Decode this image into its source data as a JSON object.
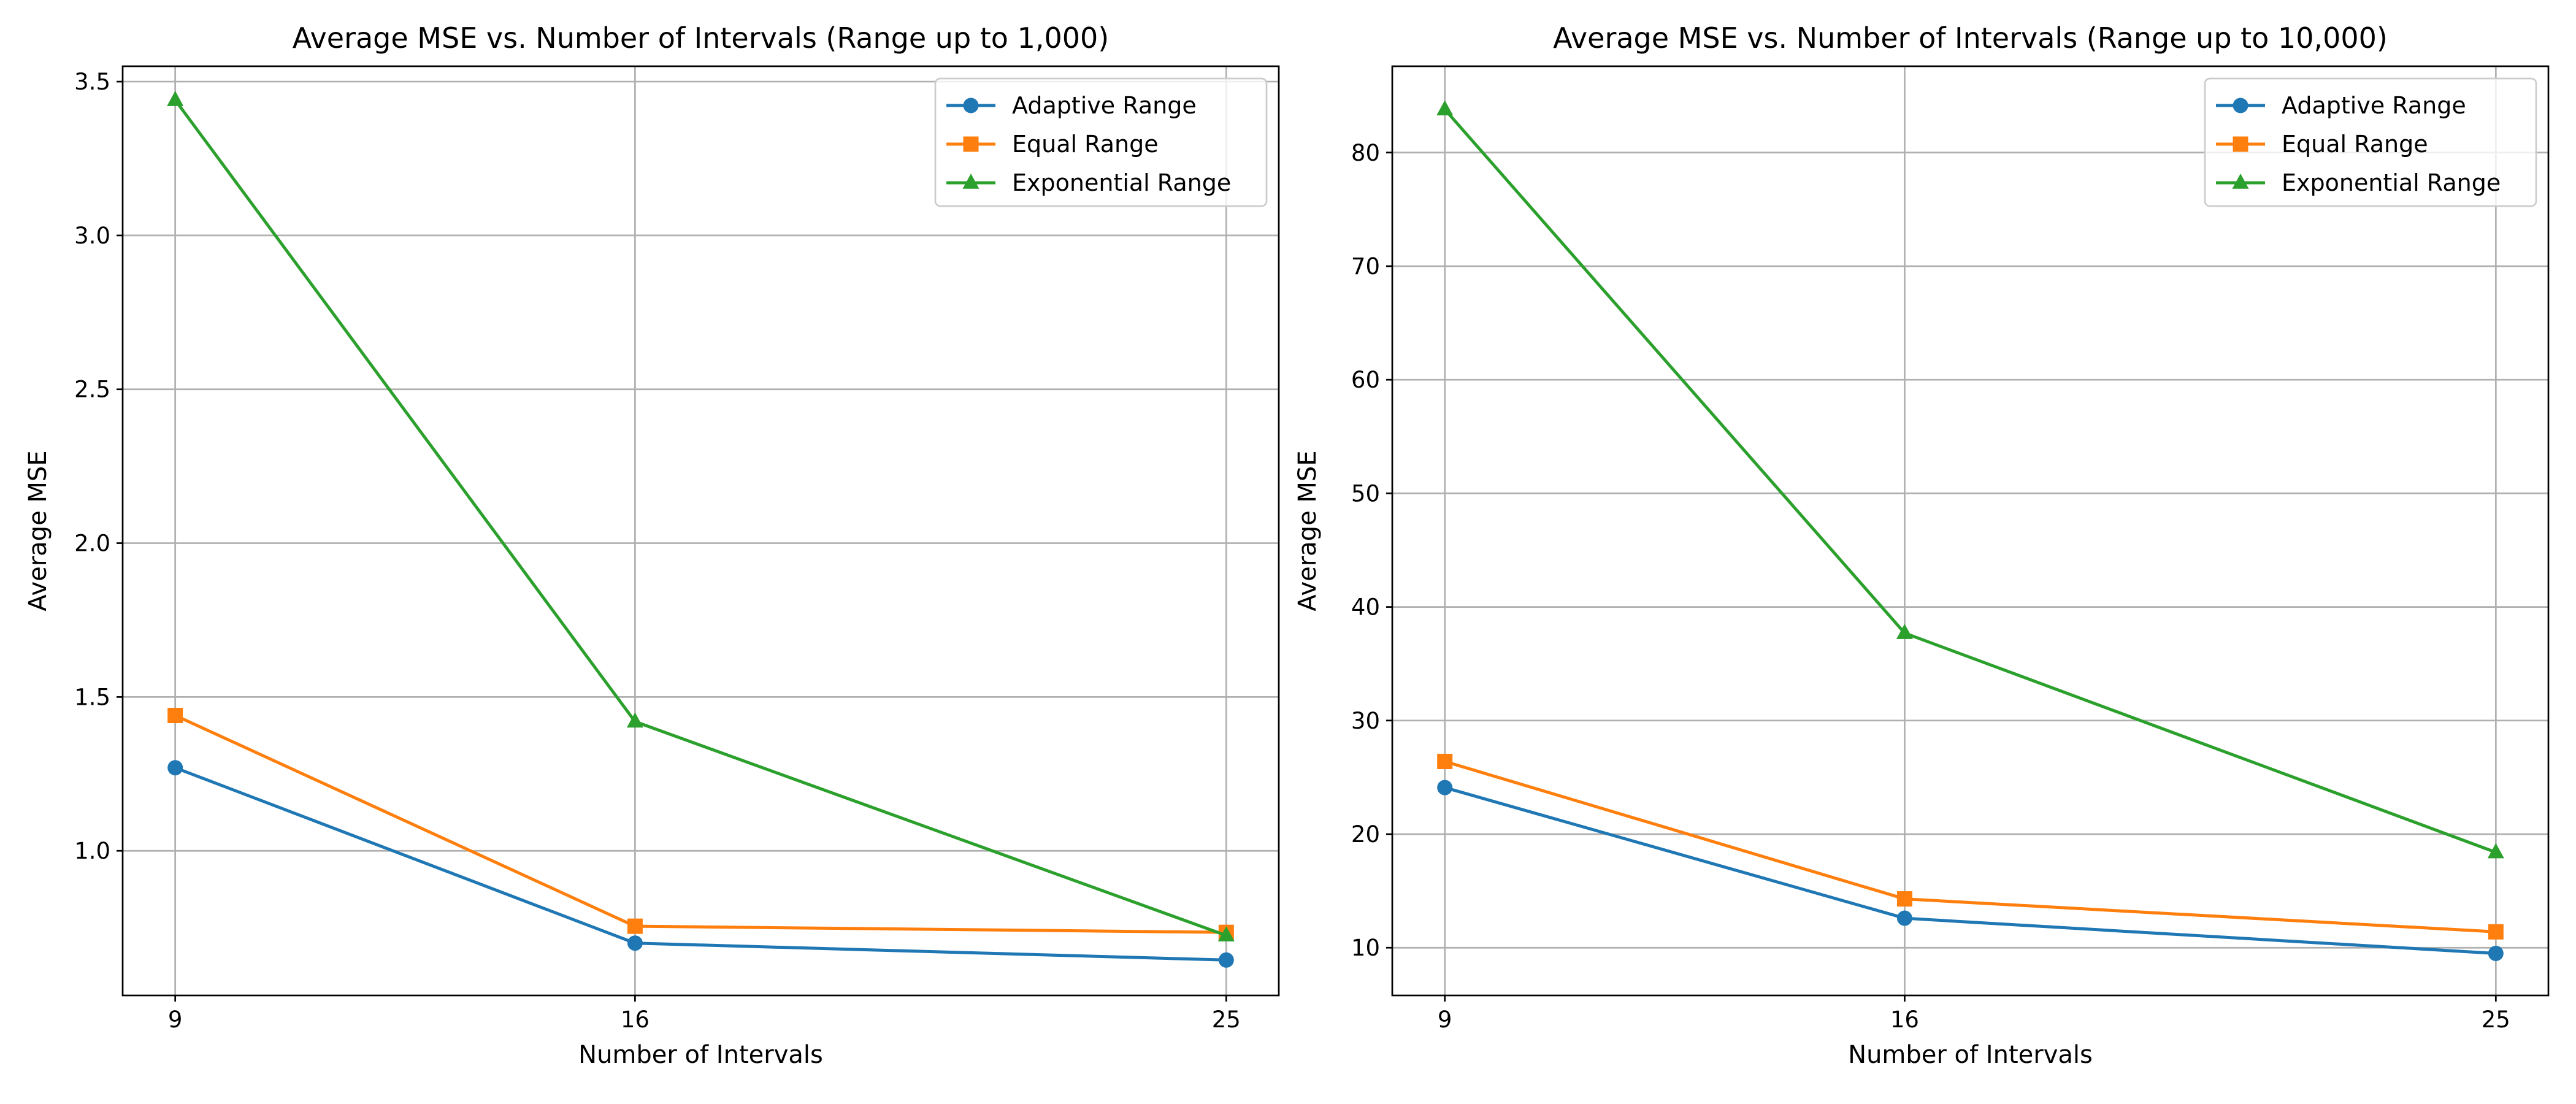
{
  "chart_data": [
    {
      "type": "line",
      "title": "Average MSE vs. Number of Intervals (Range up to 1,000)",
      "xlabel": "Number of Intervals",
      "ylabel": "Average MSE",
      "x": [
        9,
        16,
        25
      ],
      "x_tick_labels": [
        "9",
        "16",
        "25"
      ],
      "xlim": [
        8.2,
        25.8
      ],
      "ylim": [
        0.53,
        3.55
      ],
      "y_ticks": [
        1.0,
        1.5,
        2.0,
        2.5,
        3.0,
        3.5
      ],
      "y_tick_labels": [
        "1.0",
        "1.5",
        "2.0",
        "2.5",
        "3.0",
        "3.5"
      ],
      "grid": true,
      "legend_position": "top-right",
      "series": [
        {
          "name": "Adaptive Range",
          "color": "#1f77b4",
          "marker": "circle",
          "values": [
            1.27,
            0.7,
            0.645
          ]
        },
        {
          "name": "Equal Range",
          "color": "#ff7f0e",
          "marker": "square",
          "values": [
            1.44,
            0.755,
            0.735
          ]
        },
        {
          "name": "Exponential Range",
          "color": "#2ca02c",
          "marker": "triangle",
          "values": [
            3.44,
            1.42,
            0.725
          ]
        }
      ]
    },
    {
      "type": "line",
      "title": "Average MSE vs. Number of Intervals (Range up to 10,000)",
      "xlabel": "Number of Intervals",
      "ylabel": "Average MSE",
      "x": [
        9,
        16,
        25
      ],
      "x_tick_labels": [
        "9",
        "16",
        "25"
      ],
      "xlim": [
        8.2,
        25.8
      ],
      "ylim": [
        5.8,
        87.6
      ],
      "y_ticks": [
        10,
        20,
        30,
        40,
        50,
        60,
        70,
        80
      ],
      "y_tick_labels": [
        "10",
        "20",
        "30",
        "40",
        "50",
        "60",
        "70",
        "80"
      ],
      "grid": true,
      "legend_position": "top-right",
      "series": [
        {
          "name": "Adaptive Range",
          "color": "#1f77b4",
          "marker": "circle",
          "values": [
            24.1,
            12.6,
            9.5
          ]
        },
        {
          "name": "Equal Range",
          "color": "#ff7f0e",
          "marker": "square",
          "values": [
            26.4,
            14.3,
            11.4
          ]
        },
        {
          "name": "Exponential Range",
          "color": "#2ca02c",
          "marker": "triangle",
          "values": [
            83.8,
            37.7,
            18.4
          ]
        }
      ]
    }
  ]
}
